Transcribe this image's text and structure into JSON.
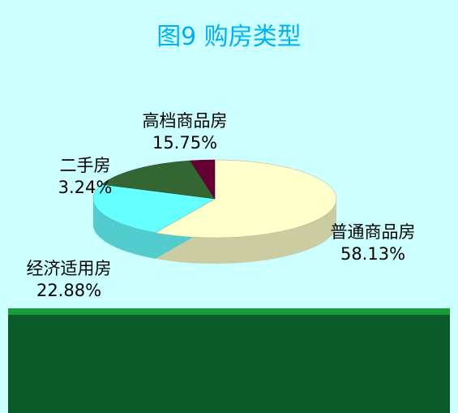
{
  "chart_data": {
    "type": "pie",
    "title": "图9 购房类型",
    "categories": [
      "普通商品房",
      "经济适用房",
      "高档商品房",
      "二手房"
    ],
    "values": [
      58.13,
      22.88,
      15.75,
      3.24
    ],
    "value_labels": [
      "58.13%",
      "22.88%",
      "15.75%",
      "3.24%"
    ],
    "colors": [
      "#ffffcc",
      "#66ffff",
      "#336633",
      "#660033"
    ]
  }
}
